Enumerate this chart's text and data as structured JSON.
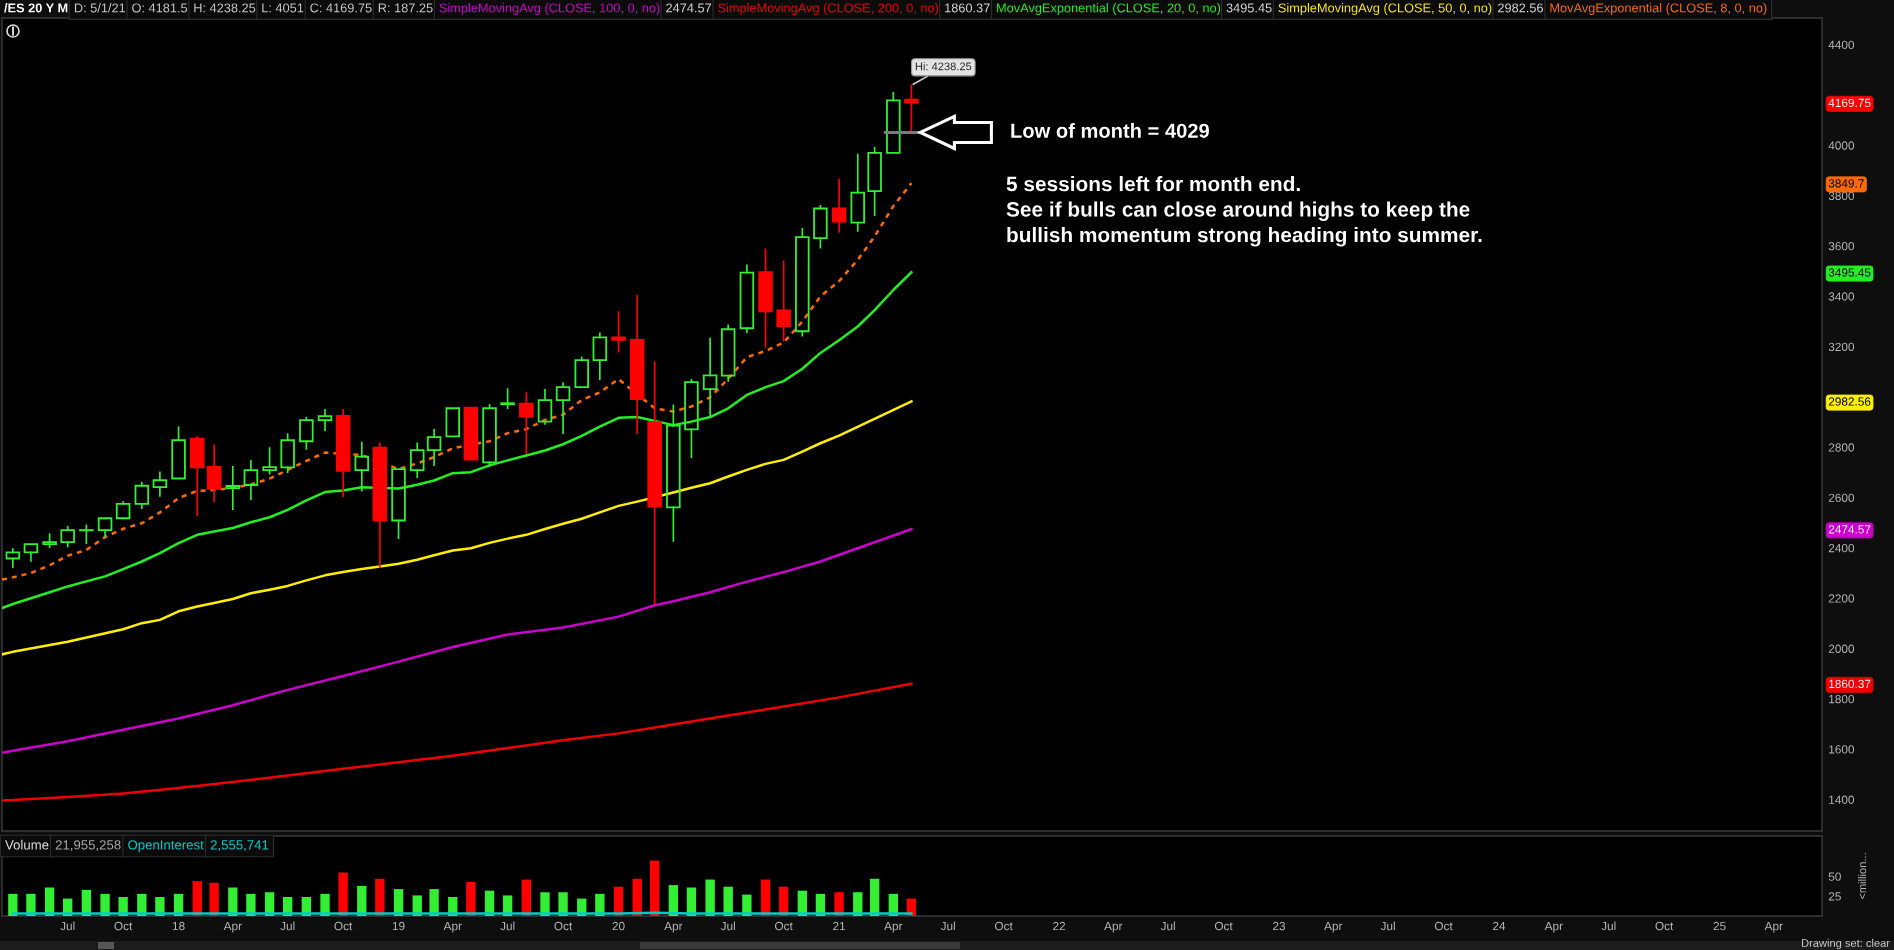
{
  "chart_data": [
    {
      "type": "candlestick",
      "title": "/ES 20 Y M",
      "x": [
        "2017-04",
        "2017-05",
        "2017-06",
        "2017-07",
        "2017-08",
        "2017-09",
        "2017-10",
        "2017-11",
        "2017-12",
        "2018-01",
        "2018-02",
        "2018-03",
        "2018-04",
        "2018-05",
        "2018-06",
        "2018-07",
        "2018-08",
        "2018-09",
        "2018-10",
        "2018-11",
        "2018-12",
        "2019-01",
        "2019-02",
        "2019-03",
        "2019-04",
        "2019-05",
        "2019-06",
        "2019-07",
        "2019-08",
        "2019-09",
        "2019-10",
        "2019-11",
        "2019-12",
        "2020-01",
        "2020-02",
        "2020-03",
        "2020-04",
        "2020-05",
        "2020-06",
        "2020-07",
        "2020-08",
        "2020-09",
        "2020-10",
        "2020-11",
        "2020-12",
        "2021-01",
        "2021-02",
        "2021-03",
        "2021-04",
        "2021-05"
      ],
      "ohlc": [
        [
          2358,
          2395,
          2324,
          2382
        ],
        [
          2382,
          2419,
          2348,
          2415
        ],
        [
          2415,
          2455,
          2403,
          2423
        ],
        [
          2423,
          2484,
          2406,
          2471
        ],
        [
          2470,
          2490,
          2419,
          2471
        ],
        [
          2471,
          2519,
          2448,
          2518
        ],
        [
          2518,
          2582,
          2518,
          2575
        ],
        [
          2575,
          2660,
          2558,
          2647
        ],
        [
          2642,
          2700,
          2607,
          2669
        ],
        [
          2676,
          2880,
          2676,
          2828
        ],
        [
          2834,
          2840,
          2530,
          2720
        ],
        [
          2722,
          2808,
          2585,
          2635
        ],
        [
          2638,
          2722,
          2554,
          2646
        ],
        [
          2650,
          2746,
          2594,
          2709
        ],
        [
          2709,
          2797,
          2695,
          2721
        ],
        [
          2720,
          2852,
          2701,
          2828
        ],
        [
          2824,
          2918,
          2793,
          2908
        ],
        [
          2908,
          2949,
          2868,
          2924
        ],
        [
          2925,
          2949,
          2606,
          2706
        ],
        [
          2709,
          2819,
          2628,
          2763
        ],
        [
          2798,
          2816,
          2324,
          2509
        ],
        [
          2509,
          2715,
          2439,
          2713
        ],
        [
          2709,
          2816,
          2681,
          2789
        ],
        [
          2789,
          2869,
          2729,
          2840
        ],
        [
          2843,
          2959,
          2842,
          2955
        ],
        [
          2957,
          2962,
          2748,
          2751
        ],
        [
          2740,
          2969,
          2726,
          2955
        ],
        [
          2971,
          3031,
          2955,
          2975
        ],
        [
          2973,
          3015,
          2777,
          2922
        ],
        [
          2902,
          3028,
          2893,
          2987
        ],
        [
          2987,
          3055,
          2856,
          3039
        ],
        [
          3039,
          3157,
          3035,
          3146
        ],
        [
          3146,
          3253,
          3071,
          3237
        ],
        [
          3237,
          3337,
          3180,
          3227
        ],
        [
          3227,
          3402,
          2856,
          2991
        ],
        [
          2900,
          3138,
          2178,
          2565
        ],
        [
          2561,
          2967,
          2428,
          2886
        ],
        [
          2871,
          3068,
          2761,
          3059
        ],
        [
          3031,
          3232,
          2922,
          3086
        ],
        [
          3085,
          3285,
          3064,
          3269
        ],
        [
          3273,
          3523,
          3257,
          3494
        ],
        [
          3496,
          3587,
          3199,
          3340
        ],
        [
          3344,
          3539,
          3224,
          3282
        ],
        [
          3261,
          3668,
          3244,
          3635
        ],
        [
          3631,
          3760,
          3593,
          3749
        ],
        [
          3749,
          3864,
          3656,
          3697
        ],
        [
          3693,
          3963,
          3660,
          3812
        ],
        [
          3818,
          3990,
          3722,
          3970
        ],
        [
          3970,
          4209,
          3966,
          4179
        ],
        [
          4181.5,
          4238.25,
          4051,
          4169.75
        ]
      ],
      "colors": [
        "#33ee33",
        "#33ee33",
        "#33ee33",
        "#33ee33",
        "#33ee33",
        "#33ee33",
        "#33ee33",
        "#33ee33",
        "#33ee33",
        "#33ee33",
        "#ff0000",
        "#ff0000",
        "#33ee33",
        "#33ee33",
        "#33ee33",
        "#33ee33",
        "#33ee33",
        "#33ee33",
        "#ff0000",
        "#33ee33",
        "#ff0000",
        "#33ee33",
        "#33ee33",
        "#33ee33",
        "#33ee33",
        "#ff0000",
        "#33ee33",
        "#33ee33",
        "#ff0000",
        "#33ee33",
        "#33ee33",
        "#33ee33",
        "#33ee33",
        "#ff0000",
        "#ff0000",
        "#ff0000",
        "#33ee33",
        "#33ee33",
        "#33ee33",
        "#33ee33",
        "#33ee33",
        "#ff0000",
        "#ff0000",
        "#33ee33",
        "#33ee33",
        "#ff0000",
        "#33ee33",
        "#33ee33",
        "#33ee33",
        "#ff0000"
      ],
      "series": [
        {
          "type": "line",
          "name": "SimpleMovingAvg (CLOSE, 100, 0, no)",
          "color": "#cc00cc",
          "line_style": "solid",
          "x": [
            "2017-03-14",
            "2017-04",
            "2017-07",
            "2017-10",
            "2018-01",
            "2018-04",
            "2018-07",
            "2018-10",
            "2019-01",
            "2019-04",
            "2019-07",
            "2019-10",
            "2020-01",
            "2020-03",
            "2020-04",
            "2020-06",
            "2020-08",
            "2020-10",
            "2020-12",
            "2021-05"
          ],
          "values": [
            1586,
            1594,
            1632,
            1677,
            1722,
            1775,
            1836,
            1891,
            1948,
            2006,
            2056,
            2084,
            2127,
            2172,
            2188,
            2224,
            2266,
            2304,
            2346,
            2474.57
          ]
        },
        {
          "type": "line",
          "name": "SimpleMovingAvg (CLOSE, 200, 0, no)",
          "color": "#ee0000",
          "line_style": "solid",
          "x": [
            "2017-03-14",
            "2017-04",
            "2017-07",
            "2017-10",
            "2018-01",
            "2018-04",
            "2018-07",
            "2018-10",
            "2019-01",
            "2019-04",
            "2019-07",
            "2019-10",
            "2020-01",
            "2020-04",
            "2020-07",
            "2020-10",
            "2021-01",
            "2021-05"
          ],
          "values": [
            1396,
            1398,
            1410,
            1424,
            1446,
            1470,
            1496,
            1522,
            1548,
            1574,
            1605,
            1636,
            1663,
            1698,
            1734,
            1770,
            1806,
            1860.37
          ]
        },
        {
          "type": "line",
          "name": "MovAvgExponential (CLOSE, 20, 0, no)",
          "color": "#22ee22",
          "line_style": "solid",
          "x": [
            "2017-03-14",
            "2017-04",
            "2017-05",
            "2017-06",
            "2017-07",
            "2017-08",
            "2017-09",
            "2017-10",
            "2017-11",
            "2017-12",
            "2018-01",
            "2018-02",
            "2018-03",
            "2018-04",
            "2018-05",
            "2018-06",
            "2018-07",
            "2018-08",
            "2018-09",
            "2018-10",
            "2018-11",
            "2019-01",
            "2019-02",
            "2019-03",
            "2019-04",
            "2019-05",
            "2019-06",
            "2019-07",
            "2019-08",
            "2019-09",
            "2019-10",
            "2019-11",
            "2019-12",
            "2020-01",
            "2020-02",
            "2020-04",
            "2020-05",
            "2020-06",
            "2020-07",
            "2020-08",
            "2020-09",
            "2020-10",
            "2020-11",
            "2020-12",
            "2021-01",
            "2021-02",
            "2021-03",
            "2021-04",
            "2021-05"
          ],
          "values": [
            2161,
            2177,
            2200,
            2224,
            2247,
            2267,
            2287,
            2316,
            2346,
            2379,
            2419,
            2452,
            2465,
            2479,
            2502,
            2522,
            2551,
            2589,
            2622,
            2628,
            2641,
            2636,
            2651,
            2668,
            2697,
            2701,
            2728,
            2748,
            2767,
            2787,
            2812,
            2845,
            2882,
            2917,
            2920,
            2888,
            2902,
            2920,
            2955,
            3008,
            3039,
            3063,
            3112,
            3175,
            3225,
            3280,
            3345,
            3425,
            3495.45
          ]
        },
        {
          "type": "line",
          "name": "SimpleMovingAvg (CLOSE, 50, 0, no)",
          "color": "#ffee00",
          "line_style": "solid",
          "x": [
            "2017-03-14",
            "2017-04",
            "2017-07",
            "2017-10",
            "2017-11",
            "2017-12",
            "2018-01",
            "2018-02",
            "2018-03",
            "2018-04",
            "2018-05",
            "2018-06",
            "2018-07",
            "2018-08",
            "2018-09",
            "2018-10",
            "2018-11",
            "2018-12",
            "2019-01",
            "2019-02",
            "2019-03",
            "2019-04",
            "2019-05",
            "2019-06",
            "2019-07",
            "2019-08",
            "2019-09",
            "2019-10",
            "2019-11",
            "2019-12",
            "2020-01",
            "2020-02",
            "2020-04",
            "2020-05",
            "2020-06",
            "2020-07",
            "2020-08",
            "2020-09",
            "2020-10",
            "2020-11",
            "2020-12",
            "2021-01",
            "2021-05"
          ],
          "values": [
            1977,
            1987,
            2027,
            2077,
            2101,
            2114,
            2148,
            2167,
            2181,
            2197,
            2220,
            2234,
            2249,
            2271,
            2291,
            2304,
            2316,
            2326,
            2337,
            2353,
            2371,
            2390,
            2399,
            2420,
            2437,
            2452,
            2475,
            2496,
            2516,
            2541,
            2567,
            2584,
            2620,
            2639,
            2657,
            2684,
            2710,
            2734,
            2750,
            2783,
            2816,
            2846,
            2982.56
          ]
        },
        {
          "type": "line",
          "name": "MovAvgExponential (CLOSE, 8, 0, no)",
          "color": "#ff6a00",
          "line_style": "dashed",
          "x": [
            "2017-03-14",
            "2017-04",
            "2017-05",
            "2017-06",
            "2017-07",
            "2017-08",
            "2017-09",
            "2017-10",
            "2017-11",
            "2017-12",
            "2018-01",
            "2018-02",
            "2018-03",
            "2018-04",
            "2018-05",
            "2018-06",
            "2018-07",
            "2018-08",
            "2018-09",
            "2018-11",
            "2019-01",
            "2019-02",
            "2019-03",
            "2019-04",
            "2019-06",
            "2019-07",
            "2019-08",
            "2019-09",
            "2019-10",
            "2019-11",
            "2019-12",
            "2020-01",
            "2020-03",
            "2020-04",
            "2020-05",
            "2020-06",
            "2020-07",
            "2020-08",
            "2020-09",
            "2020-10",
            "2020-11",
            "2020-12",
            "2021-01",
            "2021-02",
            "2021-03",
            "2021-04",
            "2021-05"
          ],
          "values": [
            2274,
            2283,
            2300,
            2331,
            2369,
            2392,
            2443,
            2476,
            2498,
            2541,
            2598,
            2627,
            2630,
            2639,
            2652,
            2675,
            2710,
            2746,
            2779,
            2769,
            2713,
            2736,
            2761,
            2796,
            2824,
            2856,
            2872,
            2909,
            2929,
            2988,
            3018,
            3071,
            2955,
            2942,
            2962,
            2999,
            3072,
            3158,
            3183,
            3216,
            3300,
            3400,
            3460,
            3545,
            3638,
            3758,
            3849.7
          ]
        }
      ],
      "xlim": [
        "2017-03-14",
        "2025-06-20"
      ],
      "ylim": [
        1275,
        4506
      ],
      "yticks": [
        1400,
        1600,
        1800,
        1860.37,
        2000,
        2200,
        2400,
        2474.57,
        2600,
        2800,
        2982.56,
        3200,
        3400,
        3495.45,
        3600,
        3800,
        3849.7,
        4000,
        4169.75,
        4400
      ],
      "tick_labels": "y",
      "legend": "top",
      "annotations": [
        "D: 5/1/21",
        "O: 4181.5",
        "H: 4238.25",
        "L: 4051",
        "C: 4169.75",
        "R: 187.25",
        {
          "text": "Hi: 4238.25",
          "x": "2021-05",
          "y": 4238.25
        },
        "Low of month = 4029",
        "2474.57",
        "1860.37",
        "3495.45",
        "2982.56",
        "5 sessions left for month end.\nSee if bulls can close around highs to keep the\nbullish momentum strong heading into summer."
      ]
    },
    {
      "type": "bar",
      "x": [
        "2017-04",
        "2017-05",
        "2017-06",
        "2017-07",
        "2017-08",
        "2017-09",
        "2017-10",
        "2017-11",
        "2017-12",
        "2018-01",
        "2018-02",
        "2018-03",
        "2018-04",
        "2018-05",
        "2018-06",
        "2018-07",
        "2018-08",
        "2018-09",
        "2018-10",
        "2018-11",
        "2018-12",
        "2019-01",
        "2019-02",
        "2019-03",
        "2019-04",
        "2019-05",
        "2019-06",
        "2019-07",
        "2019-08",
        "2019-09",
        "2019-10",
        "2019-11",
        "2019-12",
        "2020-01",
        "2020-02",
        "2020-03",
        "2020-04",
        "2020-05",
        "2020-06",
        "2020-07",
        "2020-08",
        "2020-09",
        "2020-10",
        "2020-11",
        "2020-12",
        "2021-01",
        "2021-02",
        "2021-03",
        "2021-04",
        "2021-05"
      ],
      "series": [
        {
          "name": "Volume",
          "values": [
            28,
            28,
            36,
            22,
            33,
            28,
            24,
            28,
            24,
            28,
            44,
            42,
            36,
            28,
            30,
            24,
            24,
            28,
            55,
            38,
            47,
            34,
            26,
            34,
            24,
            43,
            32,
            26,
            46,
            30,
            30,
            22,
            28,
            37,
            47,
            70,
            39,
            36,
            46,
            37,
            27,
            46,
            37,
            32,
            28,
            30,
            30,
            47,
            28,
            22
          ],
          "colors": [
            "#33ee33",
            "#33ee33",
            "#33ee33",
            "#33ee33",
            "#33ee33",
            "#33ee33",
            "#33ee33",
            "#33ee33",
            "#33ee33",
            "#33ee33",
            "#ff0000",
            "#ff0000",
            "#33ee33",
            "#33ee33",
            "#33ee33",
            "#33ee33",
            "#33ee33",
            "#33ee33",
            "#ff0000",
            "#33ee33",
            "#ff0000",
            "#33ee33",
            "#33ee33",
            "#33ee33",
            "#33ee33",
            "#ff0000",
            "#33ee33",
            "#33ee33",
            "#ff0000",
            "#33ee33",
            "#33ee33",
            "#33ee33",
            "#33ee33",
            "#ff0000",
            "#ff0000",
            "#ff0000",
            "#33ee33",
            "#33ee33",
            "#33ee33",
            "#33ee33",
            "#33ee33",
            "#ff0000",
            "#ff0000",
            "#33ee33",
            "#33ee33",
            "#ff0000",
            "#33ee33",
            "#33ee33",
            "#33ee33",
            "#ff0000"
          ]
        },
        {
          "type": "line",
          "name": "OpenInterest",
          "color": "#00cccc",
          "line_style": "solid",
          "x": [
            "2017-04",
            "2018-06",
            "2019-06",
            "2020-01",
            "2020-03",
            "2020-05",
            "2020-09",
            "2021-05"
          ],
          "values": [
            3,
            3,
            3,
            3,
            4,
            3,
            3,
            3
          ]
        }
      ],
      "xlim": [
        "2017-03-14",
        "2025-06-20"
      ],
      "ylim": [
        0,
        101
      ],
      "yticks": [
        25,
        50
      ],
      "xticks": [
        {
          "value": "2017-07",
          "label": "Jul"
        },
        {
          "value": "2017-10",
          "label": "Oct"
        },
        {
          "value": "2018-01",
          "label": "18"
        },
        {
          "value": "2018-04",
          "label": "Apr"
        },
        {
          "value": "2018-07",
          "label": "Jul"
        },
        {
          "value": "2018-10",
          "label": "Oct"
        },
        {
          "value": "2019-01",
          "label": "19"
        },
        {
          "value": "2019-04",
          "label": "Apr"
        },
        {
          "value": "2019-07",
          "label": "Jul"
        },
        {
          "value": "2019-10",
          "label": "Oct"
        },
        {
          "value": "2020-01",
          "label": "20"
        },
        {
          "value": "2020-04",
          "label": "Apr"
        },
        {
          "value": "2020-07",
          "label": "Jul"
        },
        {
          "value": "2020-10",
          "label": "Oct"
        },
        {
          "value": "2021-01",
          "label": "21"
        },
        {
          "value": "2021-04",
          "label": "Apr"
        },
        {
          "value": "2021-07",
          "label": "Jul"
        },
        {
          "value": "2021-10",
          "label": "Oct"
        },
        {
          "value": "2022-01",
          "label": "22"
        },
        {
          "value": "2022-04",
          "label": "Apr"
        },
        {
          "value": "2022-07",
          "label": "Jul"
        },
        {
          "value": "2022-10",
          "label": "Oct"
        },
        {
          "value": "2023-01",
          "label": "23"
        },
        {
          "value": "2023-04",
          "label": "Apr"
        },
        {
          "value": "2023-07",
          "label": "Jul"
        },
        {
          "value": "2023-10",
          "label": "Oct"
        },
        {
          "value": "2024-01",
          "label": "24"
        },
        {
          "value": "2024-04",
          "label": "Apr"
        },
        {
          "value": "2024-07",
          "label": "Jul"
        },
        {
          "value": "2024-10",
          "label": "Oct"
        },
        {
          "value": "2025-01",
          "label": "25"
        },
        {
          "value": "2025-04",
          "label": "Apr"
        }
      ],
      "ylabel": "<million...",
      "legend": "top",
      "annotations": [
        "21,955,258",
        "2,555,741",
        "Drawing set: clear"
      ]
    }
  ]
}
